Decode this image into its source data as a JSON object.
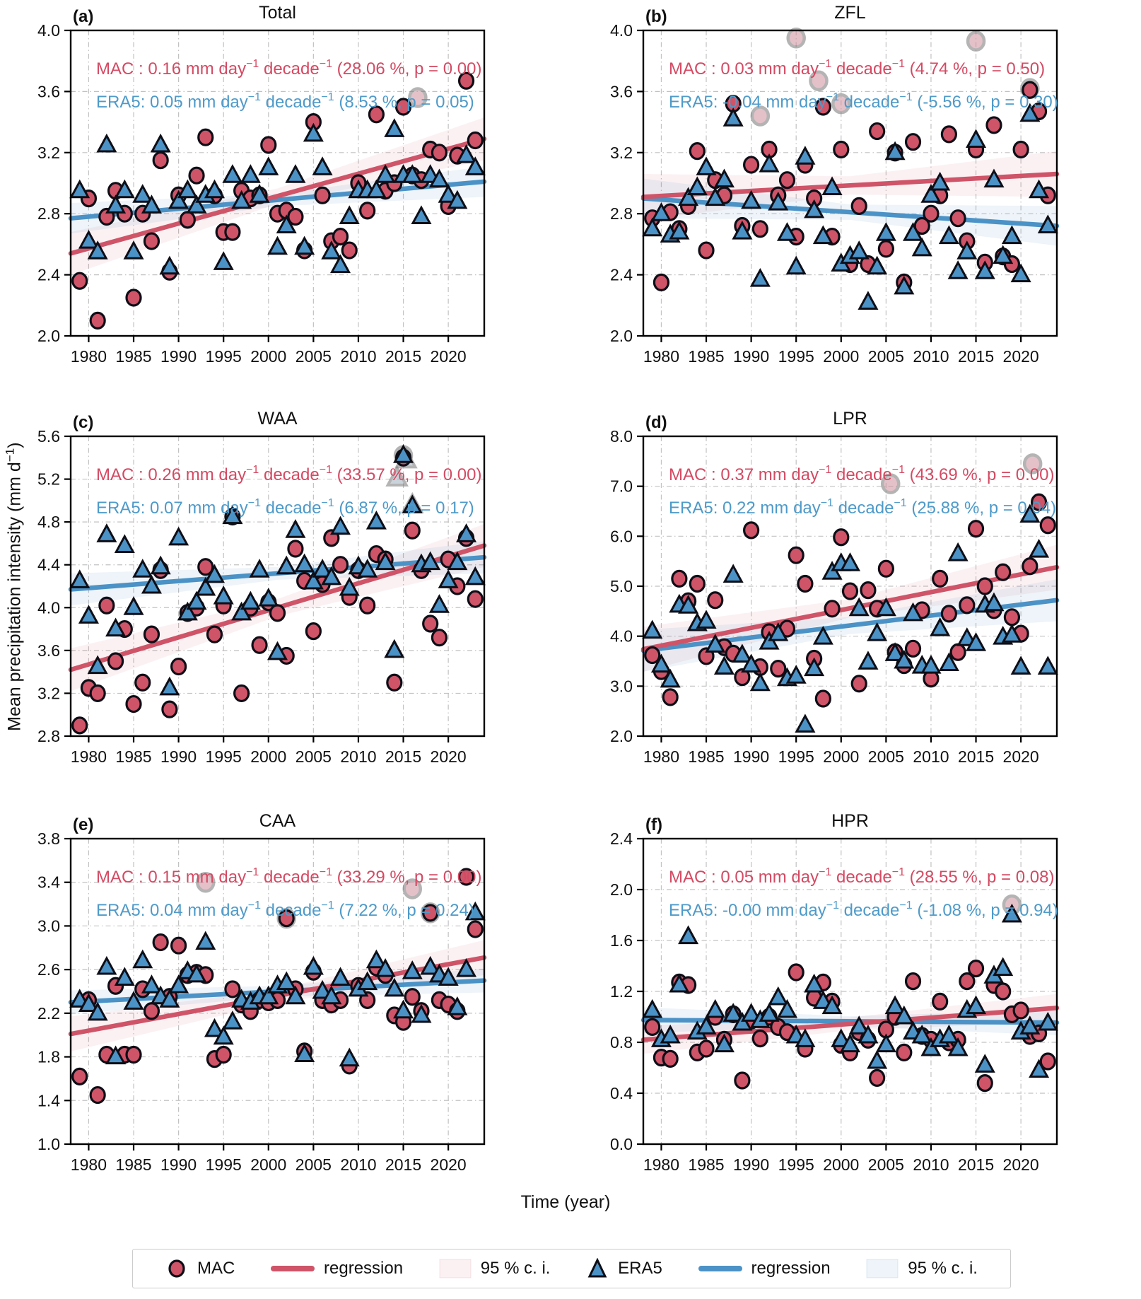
{
  "figure": {
    "xlabel": "Time (year)",
    "ylabel_text": "Mean precipitation intensity (mm d",
    "ylabel_sup": "−1",
    "ylabel_close": ")"
  },
  "legend": {
    "items": [
      {
        "label": "MAC",
        "marker": "red-circle"
      },
      {
        "label": "regression",
        "marker": "red-line"
      },
      {
        "label": "95 % c. i.",
        "marker": "red-band"
      },
      {
        "label": "ERA5",
        "marker": "blue-triangle"
      },
      {
        "label": "regression",
        "marker": "blue-line"
      },
      {
        "label": "95 % c. i.",
        "marker": "blue-band"
      }
    ]
  },
  "colors": {
    "mac_fill": "#cf5468",
    "mac_line": "#cf5468",
    "mac_text": "#d44a63",
    "era5_fill": "#4b92c6",
    "era5_line": "#4b92c6",
    "era5_text": "#4e9ac9",
    "marker_edge": "#0e0e17",
    "mac_ci": "rgba(210,80,103,0.08)",
    "era5_ci": "rgba(86,152,201,0.10)",
    "grid": "#c2c2c2",
    "gray_fill": "#cf8f9d",
    "gray_tri_fill": "#9fb0bd",
    "gray_edge": "#777777"
  },
  "years": [
    1979,
    1980,
    1981,
    1982,
    1983,
    1984,
    1985,
    1986,
    1987,
    1988,
    1989,
    1990,
    1991,
    1992,
    1993,
    1994,
    1995,
    1996,
    1997,
    1998,
    1999,
    2000,
    2001,
    2002,
    2003,
    2004,
    2005,
    2006,
    2007,
    2008,
    2009,
    2010,
    2011,
    2012,
    2013,
    2014,
    2015,
    2016,
    2017,
    2018,
    2019,
    2020,
    2021,
    2022,
    2023
  ],
  "chart_data": [
    {
      "type": "scatter",
      "letter": "(a)",
      "title": "Total",
      "xlim": [
        1978,
        2024
      ],
      "xticks": [
        1980,
        1985,
        1990,
        1995,
        2000,
        2005,
        2010,
        2015,
        2020
      ],
      "ylim": [
        2.0,
        4.0
      ],
      "yticks": [
        "2.0",
        "2.4",
        "2.8",
        "3.2",
        "3.6",
        "4.0"
      ],
      "stats": {
        "mac": {
          "label": "MAC :",
          "slope": "0.16",
          "pct": "28.06",
          "p": "0.00"
        },
        "era5": {
          "label": "ERA5:",
          "slope": "0.05",
          "pct": "8.53",
          "p": "0.05"
        }
      },
      "series": {
        "mac": [
          2.36,
          2.9,
          2.1,
          2.78,
          2.95,
          2.8,
          2.25,
          2.8,
          2.62,
          3.15,
          2.42,
          2.92,
          2.76,
          3.05,
          3.3,
          2.92,
          2.68,
          2.68,
          2.95,
          2.9,
          2.92,
          3.25,
          2.8,
          2.82,
          2.78,
          2.56,
          3.4,
          2.92,
          2.62,
          2.65,
          2.56,
          3.0,
          2.82,
          3.45,
          2.95,
          3.0,
          3.5,
          3.05,
          3.02,
          3.22,
          3.2,
          2.85,
          3.18,
          3.67,
          3.28
        ],
        "era5": [
          2.95,
          2.62,
          2.55,
          3.25,
          2.85,
          2.95,
          2.55,
          2.92,
          2.85,
          3.25,
          2.45,
          2.88,
          2.95,
          2.85,
          2.92,
          2.95,
          2.48,
          3.05,
          2.88,
          3.05,
          2.92,
          3.1,
          2.58,
          2.72,
          3.05,
          2.58,
          3.32,
          3.1,
          2.55,
          2.46,
          2.78,
          2.95,
          2.95,
          2.95,
          3.05,
          3.35,
          3.05,
          3.05,
          2.78,
          3.05,
          3.02,
          2.92,
          2.88,
          3.18,
          3.1
        ]
      },
      "regression": {
        "mac": [
          2.54,
          3.29
        ],
        "era5": [
          2.77,
          3.01
        ]
      },
      "ci": {
        "mac": [
          0.14,
          0.05,
          0.14
        ],
        "era5": [
          0.1,
          0.04,
          0.1
        ]
      },
      "gray_points": [
        [
          2016.6,
          3.56,
          "circle"
        ]
      ]
    },
    {
      "type": "scatter",
      "letter": "(b)",
      "title": "ZFL",
      "xlim": [
        1978,
        2024
      ],
      "xticks": [
        1980,
        1985,
        1990,
        1995,
        2000,
        2005,
        2010,
        2015,
        2020
      ],
      "ylim": [
        2.0,
        4.0
      ],
      "yticks": [
        "2.0",
        "2.4",
        "2.8",
        "3.2",
        "3.6",
        "4.0"
      ],
      "stats": {
        "mac": {
          "label": "MAC :",
          "slope": "0.03",
          "pct": "4.74",
          "p": "0.50"
        },
        "era5": {
          "label": "ERA5:",
          "slope": "-0.04",
          "pct": "-5.56",
          "p": "0.30"
        }
      },
      "series": {
        "mac": [
          2.77,
          2.35,
          2.81,
          2.7,
          2.85,
          3.21,
          2.56,
          3.02,
          2.92,
          3.52,
          2.72,
          3.12,
          2.7,
          3.22,
          2.92,
          3.02,
          2.65,
          3.12,
          2.9,
          3.5,
          2.65,
          3.22,
          2.47,
          2.85,
          2.47,
          3.34,
          2.57,
          3.2,
          2.35,
          3.27,
          2.72,
          2.8,
          2.92,
          3.32,
          2.77,
          2.62,
          3.22,
          2.48,
          3.38,
          2.52,
          2.47,
          3.22,
          3.61,
          3.47,
          2.92
        ],
        "era5": [
          2.7,
          2.8,
          2.66,
          2.68,
          2.9,
          2.97,
          3.1,
          2.9,
          3.02,
          3.42,
          2.68,
          2.88,
          2.37,
          3.12,
          2.87,
          2.67,
          2.45,
          3.17,
          2.82,
          2.65,
          2.97,
          2.47,
          2.52,
          2.55,
          2.22,
          2.45,
          2.67,
          3.2,
          2.32,
          2.67,
          2.57,
          2.92,
          3.0,
          2.65,
          2.42,
          2.55,
          3.28,
          2.42,
          3.02,
          2.52,
          2.65,
          2.4,
          3.45,
          2.95,
          2.72
        ]
      },
      "regression": {
        "mac": [
          2.91,
          3.06
        ],
        "era5": [
          2.9,
          2.72
        ]
      },
      "ci": {
        "mac": [
          0.15,
          0.06,
          0.15
        ],
        "era5": [
          0.13,
          0.05,
          0.13
        ]
      },
      "gray_points": [
        [
          1991,
          3.44,
          "circle"
        ],
        [
          1995,
          3.95,
          "circle"
        ],
        [
          1997.5,
          3.67,
          "circle"
        ],
        [
          2000,
          3.52,
          "circle"
        ],
        [
          2015,
          3.93,
          "circle"
        ],
        [
          2021,
          3.62,
          "circle"
        ]
      ]
    },
    {
      "type": "scatter",
      "letter": "(c)",
      "title": "WAA",
      "xlim": [
        1978,
        2024
      ],
      "xticks": [
        1980,
        1985,
        1990,
        1995,
        2000,
        2005,
        2010,
        2015,
        2020
      ],
      "ylim": [
        2.8,
        5.6
      ],
      "yticks": [
        "2.8",
        "3.2",
        "3.6",
        "4.0",
        "4.4",
        "4.8",
        "5.2",
        "5.6"
      ],
      "stats": {
        "mac": {
          "label": "MAC :",
          "slope": "0.26",
          "pct": "33.57",
          "p": "0.00"
        },
        "era5": {
          "label": "ERA5:",
          "slope": "0.07",
          "pct": "6.87",
          "p": "0.17"
        }
      },
      "series": {
        "mac": [
          2.9,
          3.25,
          3.2,
          4.02,
          3.5,
          3.8,
          3.1,
          3.3,
          3.75,
          4.35,
          3.05,
          3.45,
          3.95,
          4.0,
          4.38,
          3.75,
          4.02,
          4.85,
          3.2,
          4.0,
          3.65,
          4.05,
          3.95,
          3.55,
          4.55,
          4.25,
          3.78,
          4.22,
          4.65,
          4.4,
          4.1,
          4.35,
          4.02,
          4.5,
          4.45,
          3.3,
          5.4,
          4.72,
          4.35,
          3.85,
          3.72,
          4.45,
          4.2,
          4.65,
          4.08
        ],
        "era5": [
          4.25,
          3.92,
          3.45,
          4.68,
          3.8,
          4.58,
          4.0,
          4.35,
          4.2,
          4.38,
          3.25,
          4.65,
          3.95,
          4.05,
          4.18,
          4.3,
          4.1,
          4.85,
          3.95,
          4.05,
          4.35,
          4.08,
          3.58,
          4.38,
          4.72,
          4.4,
          4.24,
          4.35,
          4.28,
          4.75,
          4.18,
          4.38,
          4.35,
          4.8,
          4.42,
          3.6,
          5.42,
          4.95,
          4.4,
          4.42,
          4.02,
          4.25,
          4.42,
          4.68,
          4.28
        ]
      },
      "regression": {
        "mac": [
          3.42,
          4.58
        ],
        "era5": [
          4.17,
          4.47
        ]
      },
      "ci": {
        "mac": [
          0.2,
          0.08,
          0.2
        ],
        "era5": [
          0.15,
          0.06,
          0.15
        ]
      },
      "gray_points": [
        [
          2014.3,
          5.21,
          "triangle"
        ],
        [
          2015,
          5.42,
          "circle"
        ],
        [
          2015.3,
          5.38,
          "triangle"
        ],
        [
          2016,
          4.96,
          "triangle"
        ]
      ]
    },
    {
      "type": "scatter",
      "letter": "(d)",
      "title": "LPR",
      "xlim": [
        1978,
        2024
      ],
      "xticks": [
        1980,
        1985,
        1990,
        1995,
        2000,
        2005,
        2010,
        2015,
        2020
      ],
      "ylim": [
        2.0,
        8.0
      ],
      "yticks": [
        "2.0",
        "3.0",
        "4.0",
        "5.0",
        "6.0",
        "7.0",
        "8.0"
      ],
      "stats": {
        "mac": {
          "label": "MAC :",
          "slope": "0.37",
          "pct": "43.69",
          "p": "0.00"
        },
        "era5": {
          "label": "ERA5:",
          "slope": "0.22",
          "pct": "25.88",
          "p": "0.04"
        }
      },
      "series": {
        "mac": [
          3.62,
          3.3,
          2.78,
          5.15,
          4.7,
          5.05,
          3.6,
          4.72,
          3.78,
          3.65,
          3.18,
          6.12,
          3.38,
          4.08,
          3.35,
          4.15,
          5.62,
          5.05,
          3.55,
          2.75,
          4.55,
          5.98,
          4.9,
          3.05,
          4.92,
          4.55,
          5.35,
          3.68,
          3.42,
          3.75,
          4.52,
          3.15,
          5.15,
          4.45,
          3.68,
          4.62,
          6.15,
          5.0,
          4.52,
          5.28,
          4.38,
          4.05,
          5.4,
          6.68,
          6.22
        ],
        "era5": [
          4.1,
          3.42,
          3.12,
          4.62,
          4.6,
          4.25,
          4.3,
          3.82,
          3.38,
          5.22,
          3.62,
          3.42,
          3.05,
          3.88,
          4.05,
          3.15,
          3.2,
          2.22,
          3.35,
          3.98,
          5.28,
          5.45,
          5.45,
          4.55,
          3.48,
          4.05,
          4.55,
          3.65,
          3.5,
          4.45,
          3.4,
          3.4,
          4.15,
          3.45,
          5.65,
          3.95,
          3.85,
          4.62,
          4.65,
          3.98,
          4.02,
          3.38,
          6.42,
          5.72,
          3.38
        ]
      },
      "regression": {
        "mac": [
          3.74,
          5.38
        ],
        "era5": [
          3.71,
          4.72
        ]
      },
      "ci": {
        "mac": [
          0.45,
          0.18,
          0.45
        ],
        "era5": [
          0.42,
          0.17,
          0.42
        ]
      },
      "gray_points": [
        [
          2005.5,
          7.05,
          "circle"
        ],
        [
          2021.3,
          7.45,
          "circle"
        ]
      ]
    },
    {
      "type": "scatter",
      "letter": "(e)",
      "title": "CAA",
      "xlim": [
        1978,
        2024
      ],
      "xticks": [
        1980,
        1985,
        1990,
        1995,
        2000,
        2005,
        2010,
        2015,
        2020
      ],
      "ylim": [
        1.0,
        3.8
      ],
      "yticks": [
        "1.0",
        "1.4",
        "1.8",
        "2.2",
        "2.6",
        "3.0",
        "3.4",
        "3.8"
      ],
      "stats": {
        "mac": {
          "label": "MAC :",
          "slope": "0.15",
          "pct": "33.29",
          "p": "0.00"
        },
        "era5": {
          "label": "ERA5:",
          "slope": "0.04",
          "pct": "7.22",
          "p": "0.24"
        }
      },
      "series": {
        "mac": [
          1.62,
          2.32,
          1.45,
          1.82,
          2.45,
          1.82,
          1.82,
          2.42,
          2.22,
          2.85,
          2.35,
          2.82,
          2.55,
          2.57,
          2.55,
          1.78,
          1.82,
          2.42,
          2.28,
          2.22,
          2.32,
          2.3,
          2.32,
          3.07,
          2.42,
          1.85,
          2.58,
          2.32,
          2.28,
          2.32,
          1.72,
          2.45,
          2.32,
          2.62,
          2.55,
          2.18,
          2.12,
          2.35,
          2.22,
          3.12,
          2.32,
          2.28,
          2.22,
          3.45,
          2.97
        ],
        "era5": [
          2.32,
          2.28,
          2.2,
          2.62,
          1.8,
          2.52,
          2.3,
          2.68,
          2.45,
          2.35,
          2.32,
          2.45,
          2.58,
          2.55,
          2.85,
          2.05,
          1.98,
          2.12,
          2.32,
          2.3,
          2.35,
          2.35,
          2.45,
          2.48,
          2.35,
          1.82,
          2.62,
          2.4,
          2.35,
          2.52,
          1.78,
          2.42,
          2.48,
          2.68,
          2.6,
          2.42,
          2.22,
          2.58,
          2.18,
          2.62,
          2.55,
          2.52,
          2.25,
          2.6,
          3.12
        ]
      },
      "regression": {
        "mac": [
          2.01,
          2.71
        ],
        "era5": [
          2.3,
          2.5
        ]
      },
      "ci": {
        "mac": [
          0.16,
          0.06,
          0.16
        ],
        "era5": [
          0.11,
          0.05,
          0.11
        ]
      },
      "gray_points": [
        [
          1993,
          3.4,
          "circle"
        ],
        [
          2002,
          3.07,
          "circle"
        ],
        [
          2016,
          3.34,
          "circle"
        ],
        [
          2018,
          3.12,
          "circle"
        ]
      ]
    },
    {
      "type": "scatter",
      "letter": "(f)",
      "title": "HPR",
      "xlim": [
        1978,
        2024
      ],
      "xticks": [
        1980,
        1985,
        1990,
        1995,
        2000,
        2005,
        2010,
        2015,
        2020
      ],
      "ylim": [
        0.0,
        2.4
      ],
      "yticks": [
        "0.0",
        "0.4",
        "0.8",
        "1.2",
        "1.6",
        "2.0",
        "2.4"
      ],
      "stats": {
        "mac": {
          "label": "MAC :",
          "slope": "0.05",
          "pct": "28.55",
          "p": "0.08"
        },
        "era5": {
          "label": "ERA5:",
          "slope": "-0.00",
          "pct": "-1.08",
          "p": "0.94"
        }
      },
      "series": {
        "mac": [
          0.92,
          0.68,
          0.67,
          1.27,
          1.25,
          0.72,
          0.75,
          1.0,
          0.82,
          1.02,
          0.5,
          0.97,
          0.83,
          1.0,
          0.92,
          0.88,
          1.35,
          0.75,
          1.15,
          1.27,
          1.12,
          0.78,
          0.72,
          0.88,
          0.82,
          0.52,
          0.9,
          1.0,
          0.72,
          1.28,
          0.85,
          0.82,
          1.12,
          0.8,
          0.82,
          1.28,
          1.38,
          0.48,
          1.25,
          1.2,
          1.02,
          1.05,
          0.85,
          0.87,
          0.65
        ],
        "era5": [
          1.05,
          0.82,
          0.85,
          1.25,
          1.63,
          0.88,
          0.92,
          1.05,
          0.78,
          1.02,
          0.95,
          1.02,
          0.97,
          1.02,
          1.15,
          1.05,
          0.85,
          0.82,
          1.25,
          1.12,
          1.08,
          0.82,
          0.78,
          0.92,
          0.85,
          0.65,
          0.78,
          1.08,
          1.0,
          0.88,
          0.85,
          0.75,
          0.82,
          0.85,
          0.75,
          1.05,
          1.08,
          0.62,
          1.32,
          1.38,
          1.8,
          0.88,
          0.92,
          0.58,
          0.95
        ]
      },
      "regression": {
        "mac": [
          0.82,
          1.07
        ],
        "era5": [
          0.975,
          0.955
        ]
      },
      "ci": {
        "mac": [
          0.11,
          0.05,
          0.11
        ],
        "era5": [
          0.1,
          0.04,
          0.1
        ]
      },
      "gray_points": [
        [
          2019,
          1.88,
          "circle"
        ]
      ]
    }
  ]
}
